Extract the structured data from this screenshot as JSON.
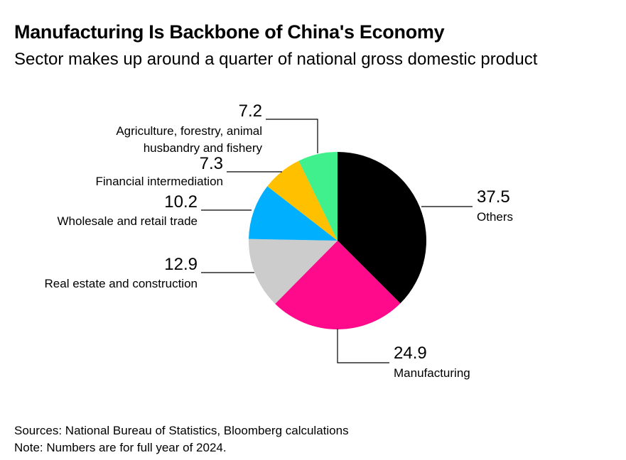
{
  "header": {
    "title": "Manufacturing Is Backbone of China's Economy",
    "subtitle": "Sector makes up around a quarter of national gross domestic product"
  },
  "footer": {
    "sources": "Sources: National Bureau of Statistics, Bloomberg calculations",
    "note": "Note: Numbers are for full year of 2024."
  },
  "chart_data": {
    "type": "pie",
    "start": "top",
    "direction": "clockwise",
    "slices": [
      {
        "label": "Others",
        "value": 37.5,
        "value_label": "37.5",
        "color": "#000000"
      },
      {
        "label": "Manufacturing",
        "value": 24.9,
        "value_label": "24.9",
        "color": "#ff0a8b"
      },
      {
        "label": "Real estate and construction",
        "value": 12.9,
        "value_label": "12.9",
        "color": "#cccccc"
      },
      {
        "label": "Wholesale and retail trade",
        "value": 10.2,
        "value_label": "10.2",
        "color": "#00b0ff"
      },
      {
        "label": "Financial intermediation",
        "value": 7.3,
        "value_label": "7.3",
        "color": "#ffc000"
      },
      {
        "label": "Agriculture, forestry, animal husbandry and fishery",
        "value": 7.2,
        "value_label": "7.2",
        "color": "#40f08c"
      }
    ]
  }
}
